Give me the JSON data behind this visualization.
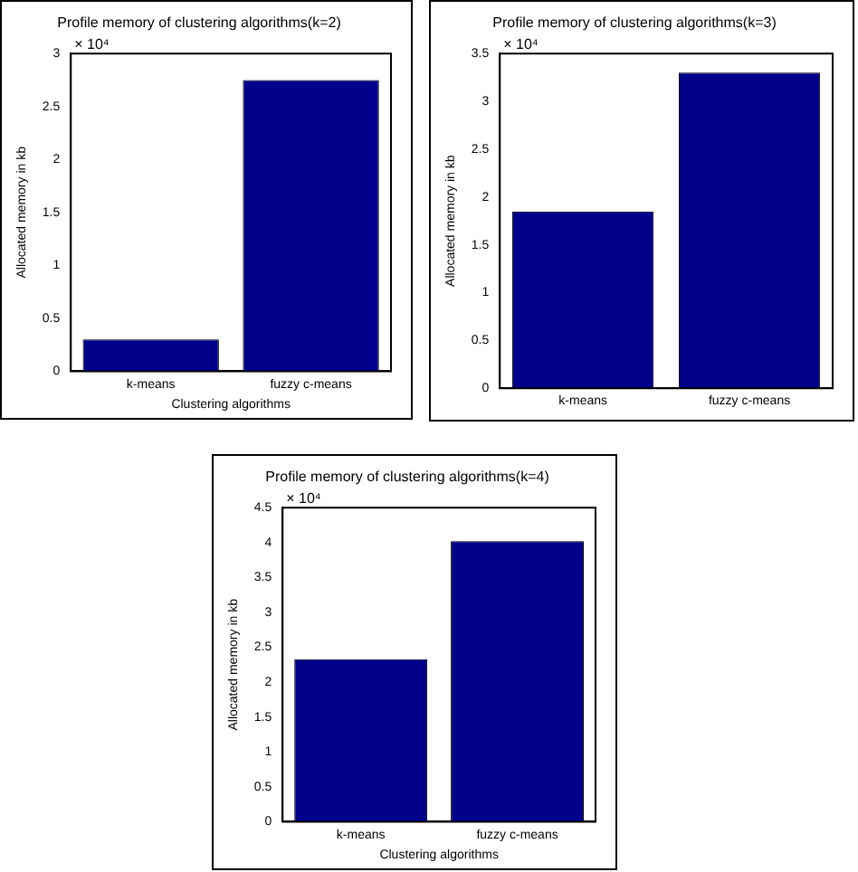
{
  "chart_data": [
    {
      "type": "bar",
      "title": "Profile memory of clustering algorithms(k=2)",
      "xlabel": "Clustering algorithms",
      "ylabel": "Allocated memory in kb",
      "categories": [
        "k-means",
        "fuzzy c-means"
      ],
      "values": [
        0.3,
        2.75
      ],
      "color": "#00008b",
      "ylim": [
        0,
        3
      ],
      "yticks": [
        0,
        0.5,
        1,
        1.5,
        2,
        2.5,
        3
      ],
      "annotations": [
        "× 10⁴"
      ],
      "grid": false,
      "legend": false
    },
    {
      "type": "bar",
      "title": "Profile memory of clustering algorithms(k=3)",
      "ylabel": "Allocated memory in kb",
      "categories": [
        "k-means",
        "fuzzy c-means"
      ],
      "values": [
        1.85,
        3.3
      ],
      "color": "#00008b",
      "ylim": [
        0,
        3.5
      ],
      "yticks": [
        0,
        0.5,
        1,
        1.5,
        2,
        2.5,
        3,
        3.5
      ],
      "annotations": [
        "× 10⁴"
      ],
      "grid": false,
      "legend": false
    },
    {
      "type": "bar",
      "title": "Profile memory of clustering algorithms(k=4)",
      "xlabel": "Clustering algorithms",
      "ylabel": "Allocated memory in kb",
      "categories": [
        "k-means",
        "fuzzy c-means"
      ],
      "values": [
        2.33,
        4.02
      ],
      "color": "#00008b",
      "ylim": [
        0,
        4.5
      ],
      "yticks": [
        0,
        0.5,
        1,
        1.5,
        2,
        2.5,
        3,
        3.5,
        4,
        4.5
      ],
      "annotations": [
        "× 10⁴"
      ],
      "grid": false,
      "legend": false
    }
  ]
}
